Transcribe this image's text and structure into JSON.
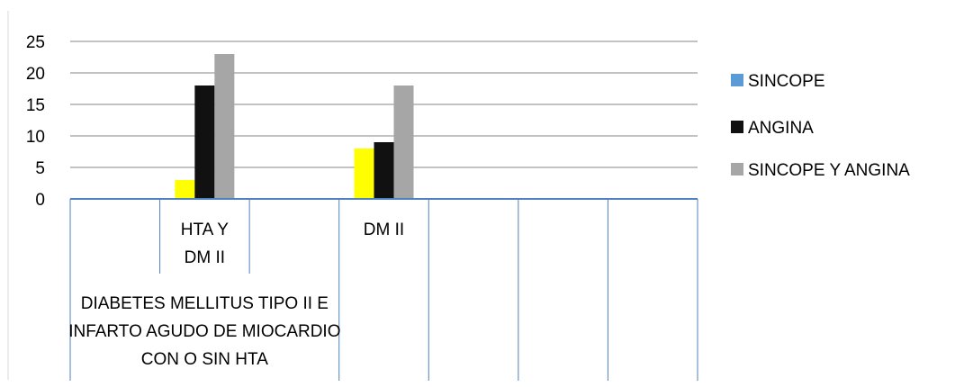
{
  "chart_data": {
    "type": "bar",
    "title": "",
    "xlabel": "",
    "ylabel": "",
    "ylim": [
      0,
      25
    ],
    "yticks": [
      0,
      5,
      10,
      15,
      20,
      25
    ],
    "grid": true,
    "legend_position": "right",
    "categories": [
      "",
      "HTA Y\nDM II",
      "",
      "DM II",
      "",
      "",
      ""
    ],
    "group_label": "DIABETES MELLITUS TIPO II E\nINFARTO AGUDO DE MIOCARDIO\nCON O SIN HTA",
    "group_span": [
      0,
      3
    ],
    "series": [
      {
        "name": "SINCOPE",
        "color": "#5B9BD5",
        "values": [
          null,
          0,
          null,
          0,
          null,
          null,
          null
        ]
      },
      {
        "name": "ANGINA",
        "color": "#111111",
        "values": [
          null,
          18,
          null,
          9,
          null,
          null,
          null
        ]
      },
      {
        "name": "SINCOPE Y ANGINA",
        "color": "#A6A6A6",
        "values": [
          null,
          23,
          null,
          18,
          null,
          null,
          null
        ]
      }
    ],
    "extra_bars": [
      {
        "category_index": 1,
        "value": 3,
        "color": "#FFFF00"
      },
      {
        "category_index": 3,
        "value": 8,
        "color": "#FFFF00"
      }
    ]
  }
}
